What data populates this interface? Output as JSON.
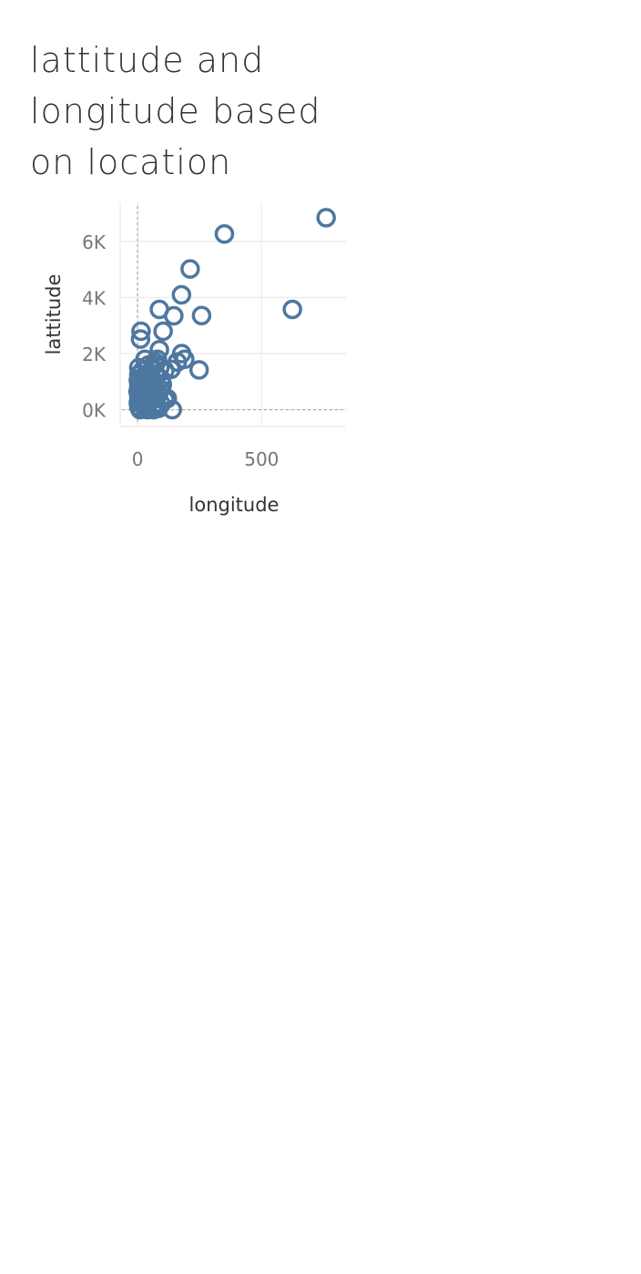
{
  "chart_data": {
    "type": "scatter",
    "title_lines": [
      "lattitude and",
      "longitude based",
      "on location"
    ],
    "xlabel": "longitude",
    "ylabel": "lattitude",
    "xlim": [
      -70,
      840
    ],
    "ylim": [
      -600,
      7400
    ],
    "x_ticks": [
      {
        "value": 0,
        "label": "0"
      },
      {
        "value": 500,
        "label": "500"
      }
    ],
    "y_ticks": [
      {
        "value": 0,
        "label": "0K"
      },
      {
        "value": 2000,
        "label": "2K"
      },
      {
        "value": 4000,
        "label": "4K"
      },
      {
        "value": 6000,
        "label": "6K"
      }
    ],
    "reference_lines": {
      "x": 0,
      "y": 0
    },
    "grid": true,
    "marker": {
      "shape": "hollow-circle",
      "color": "#4E77A0"
    },
    "points": [
      [
        760,
        6850
      ],
      [
        350,
        6270
      ],
      [
        212,
        5020
      ],
      [
        177,
        4100
      ],
      [
        624,
        3580
      ],
      [
        88,
        3580
      ],
      [
        146,
        3350
      ],
      [
        258,
        3360
      ],
      [
        14,
        2800
      ],
      [
        103,
        2800
      ],
      [
        12,
        2520
      ],
      [
        88,
        2140
      ],
      [
        178,
        2000
      ],
      [
        190,
        1800
      ],
      [
        160,
        1700
      ],
      [
        70,
        1700
      ],
      [
        248,
        1420
      ],
      [
        135,
        1440
      ],
      [
        30,
        1800
      ],
      [
        45,
        1600
      ],
      [
        5,
        1500
      ],
      [
        20,
        1400
      ],
      [
        60,
        1500
      ],
      [
        90,
        1500
      ],
      [
        110,
        1400
      ],
      [
        5,
        1250
      ],
      [
        25,
        1200
      ],
      [
        50,
        1300
      ],
      [
        75,
        1200
      ],
      [
        95,
        1100
      ],
      [
        3,
        1050
      ],
      [
        15,
        1000
      ],
      [
        40,
        1050
      ],
      [
        65,
        1000
      ],
      [
        100,
        900
      ],
      [
        5,
        850
      ],
      [
        20,
        800
      ],
      [
        45,
        850
      ],
      [
        70,
        800
      ],
      [
        90,
        750
      ],
      [
        2,
        650
      ],
      [
        15,
        600
      ],
      [
        35,
        650
      ],
      [
        60,
        600
      ],
      [
        85,
        550
      ],
      [
        5,
        450
      ],
      [
        25,
        400
      ],
      [
        50,
        450
      ],
      [
        75,
        400
      ],
      [
        110,
        350
      ],
      [
        3,
        250
      ],
      [
        20,
        200
      ],
      [
        45,
        250
      ],
      [
        70,
        200
      ],
      [
        95,
        200
      ],
      [
        5,
        100
      ],
      [
        30,
        50
      ],
      [
        60,
        100
      ],
      [
        140,
        0
      ],
      [
        10,
        0
      ],
      [
        40,
        0
      ],
      [
        65,
        0
      ],
      [
        85,
        50
      ],
      [
        120,
        400
      ],
      [
        80,
        1800
      ]
    ]
  }
}
